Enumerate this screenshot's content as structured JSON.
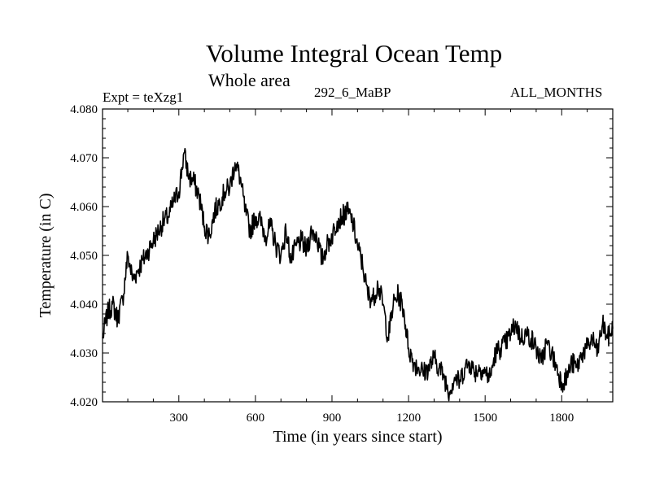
{
  "chart_data": {
    "type": "line",
    "title": "Volume Integral Ocean Temp",
    "subtitle": "Whole area",
    "experiment_label": "Expt = teXzg1",
    "run_label": "292_6_MaBP",
    "months_label": "ALL_MONTHS",
    "xlabel": "Time (in years since start)",
    "ylabel": "Temperature (in C)",
    "xlim": [
      1,
      2000
    ],
    "ylim": [
      4.02,
      4.08
    ],
    "xticks": [
      300,
      600,
      900,
      1200,
      1500,
      1800
    ],
    "xtick_labels": [
      "300",
      "600",
      "900",
      "1200",
      "1500",
      "1800"
    ],
    "yticks": [
      4.02,
      4.03,
      4.04,
      4.05,
      4.06,
      4.07,
      4.08
    ],
    "ytick_labels": [
      "4.020",
      "4.030",
      "4.040",
      "4.050",
      "4.060",
      "4.070",
      "4.080"
    ],
    "grid": false,
    "series": [
      {
        "name": "Volume Integral Ocean Temp",
        "color": "#000000",
        "x": [
          1,
          20,
          40,
          60,
          80,
          100,
          120,
          140,
          160,
          180,
          200,
          220,
          240,
          260,
          280,
          300,
          320,
          340,
          360,
          380,
          400,
          420,
          440,
          460,
          480,
          500,
          520,
          540,
          560,
          580,
          600,
          620,
          640,
          660,
          680,
          700,
          720,
          740,
          760,
          780,
          800,
          820,
          840,
          860,
          880,
          900,
          920,
          940,
          960,
          980,
          1000,
          1020,
          1040,
          1060,
          1080,
          1100,
          1120,
          1140,
          1160,
          1180,
          1200,
          1220,
          1240,
          1260,
          1280,
          1300,
          1320,
          1340,
          1360,
          1380,
          1400,
          1420,
          1440,
          1460,
          1480,
          1500,
          1520,
          1540,
          1560,
          1580,
          1600,
          1620,
          1640,
          1660,
          1680,
          1700,
          1720,
          1740,
          1760,
          1780,
          1800,
          1820,
          1840,
          1860,
          1880,
          1900,
          1920,
          1940,
          1960,
          1980,
          2000
        ],
        "values": [
          4.033,
          4.038,
          4.04,
          4.037,
          4.041,
          4.05,
          4.045,
          4.047,
          4.049,
          4.051,
          4.053,
          4.055,
          4.057,
          4.058,
          4.061,
          4.063,
          4.071,
          4.066,
          4.065,
          4.062,
          4.056,
          4.054,
          4.059,
          4.061,
          4.063,
          4.064,
          4.069,
          4.066,
          4.059,
          4.055,
          4.058,
          4.057,
          4.054,
          4.056,
          4.052,
          4.05,
          4.055,
          4.049,
          4.052,
          4.053,
          4.051,
          4.055,
          4.054,
          4.049,
          4.052,
          4.054,
          4.057,
          4.058,
          4.059,
          4.057,
          4.052,
          4.048,
          4.042,
          4.041,
          4.044,
          4.04,
          4.033,
          4.04,
          4.042,
          4.039,
          4.031,
          4.028,
          4.027,
          4.026,
          4.027,
          4.029,
          4.027,
          4.025,
          4.022,
          4.025,
          4.024,
          4.027,
          4.028,
          4.026,
          4.027,
          4.026,
          4.025,
          4.03,
          4.031,
          4.032,
          4.034,
          4.036,
          4.033,
          4.034,
          4.033,
          4.031,
          4.028,
          4.032,
          4.03,
          4.027,
          4.024,
          4.025,
          4.028,
          4.027,
          4.03,
          4.031,
          4.033,
          4.03,
          4.036,
          4.033,
          4.035
        ]
      }
    ]
  }
}
